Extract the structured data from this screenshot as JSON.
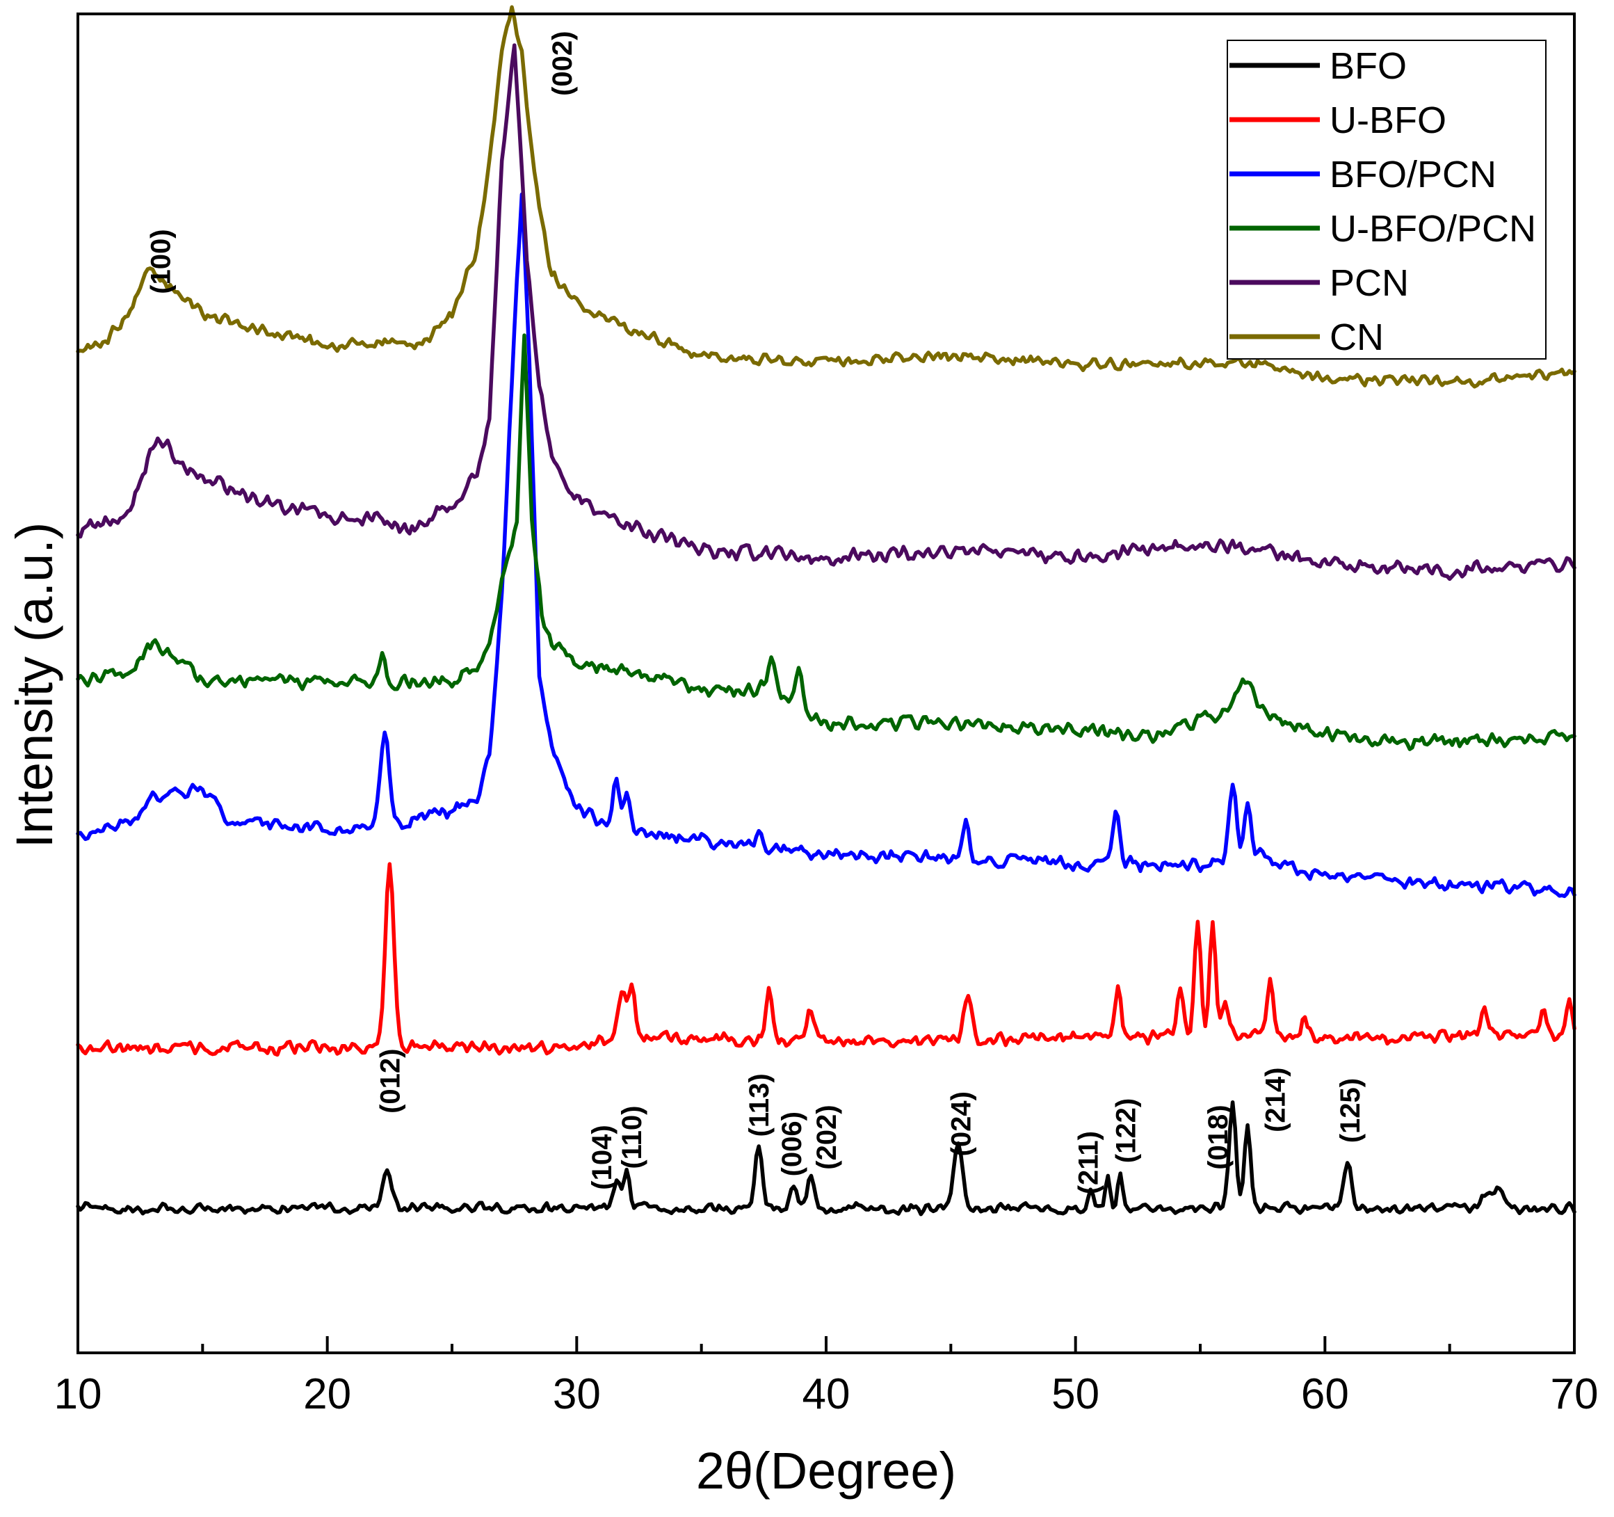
{
  "chart_data": {
    "type": "line",
    "title": "",
    "xlabel": "2θ(Degree)",
    "ylabel": "Intensity (a.u.)",
    "xlim": [
      10,
      70
    ],
    "ylim": [
      0,
      100
    ],
    "x_ticks": [
      10,
      20,
      30,
      40,
      50,
      60,
      70
    ],
    "x_tick_labels": [
      "10",
      "20",
      "30",
      "40",
      "50",
      "60",
      "70"
    ],
    "y_ticks_shown": false,
    "grid": false,
    "legend_position": "top-right",
    "legend": [
      "BFO",
      "U-BFO",
      "BFO/PCN",
      "U-BFO/PCN",
      "PCN",
      "CN"
    ],
    "series": [
      {
        "name": "BFO",
        "color": "#000000",
        "baseline": 10.8,
        "noise": 0.45,
        "envelope": [
          [
            10,
            0
          ],
          [
            70,
            0
          ]
        ],
        "peaks": [
          [
            22.4,
            3.2,
            0.18
          ],
          [
            31.6,
            2.0,
            0.12
          ],
          [
            32.0,
            3.0,
            0.12
          ],
          [
            37.3,
            4.6,
            0.14
          ],
          [
            38.7,
            1.8,
            0.14
          ],
          [
            39.4,
            2.5,
            0.14
          ],
          [
            45.3,
            4.6,
            0.18
          ],
          [
            50.6,
            1.4,
            0.12
          ],
          [
            51.3,
            2.6,
            0.1
          ],
          [
            51.8,
            2.6,
            0.1
          ],
          [
            56.3,
            7.7,
            0.14
          ],
          [
            56.9,
            6.3,
            0.12
          ],
          [
            60.9,
            3.5,
            0.16
          ],
          [
            66.5,
            1.0,
            0.2
          ],
          [
            67.0,
            1.4,
            0.2
          ]
        ]
      },
      {
        "name": "U-BFO",
        "color": "#ff0000",
        "baseline": 22.8,
        "noise": 0.55,
        "envelope": [
          [
            10,
            0
          ],
          [
            30,
            0
          ],
          [
            32,
            0.8
          ],
          [
            36,
            0.6
          ],
          [
            45,
            0.4
          ],
          [
            50,
            0.8
          ],
          [
            60,
            0.8
          ],
          [
            70,
            0.8
          ]
        ],
        "peaks": [
          [
            22.5,
            13.5,
            0.17
          ],
          [
            31.8,
            3.2,
            0.14
          ],
          [
            32.2,
            3.5,
            0.14
          ],
          [
            37.7,
            3.7,
            0.13
          ],
          [
            39.4,
            2.2,
            0.14
          ],
          [
            45.7,
            3.5,
            0.16
          ],
          [
            51.7,
            3.7,
            0.12
          ],
          [
            54.2,
            3.5,
            0.14
          ],
          [
            54.9,
            8.7,
            0.13
          ],
          [
            55.5,
            8.3,
            0.13
          ],
          [
            56.0,
            2.5,
            0.14
          ],
          [
            57.8,
            4.6,
            0.13
          ],
          [
            59.2,
            1.5,
            0.14
          ],
          [
            66.4,
            2.2,
            0.12
          ],
          [
            68.8,
            2.0,
            0.12
          ],
          [
            69.8,
            2.5,
            0.12
          ]
        ]
      },
      {
        "name": "BFO/PCN",
        "color": "#0000ff",
        "baseline": 38.5,
        "noise": 0.6,
        "envelope": [
          [
            10,
            0
          ],
          [
            12,
            1.0
          ],
          [
            13,
            3.2
          ],
          [
            15,
            3.5
          ],
          [
            16,
            1.5
          ],
          [
            18,
            0.8
          ],
          [
            20,
            0.6
          ],
          [
            22,
            0.8
          ],
          [
            25,
            2.0
          ],
          [
            26,
            3.0
          ],
          [
            26.5,
            6.0
          ],
          [
            27,
            18.0
          ],
          [
            27.5,
            38.0
          ],
          [
            27.8,
            48.0
          ],
          [
            28.1,
            36.0
          ],
          [
            28.5,
            12.0
          ],
          [
            29,
            7.0
          ],
          [
            30,
            2.0
          ],
          [
            32,
            0.6
          ],
          [
            35,
            -0.2
          ],
          [
            40,
            -1.2
          ],
          [
            45,
            -1.5
          ],
          [
            50,
            -2.0
          ],
          [
            55,
            -2.0
          ],
          [
            57,
            -1.0
          ],
          [
            60,
            -3.0
          ],
          [
            65,
            -3.5
          ],
          [
            70,
            -4.0
          ]
        ],
        "peaks": [
          [
            22.3,
            6.9,
            0.17
          ],
          [
            31.6,
            3.5,
            0.12
          ],
          [
            32.0,
            2.5,
            0.12
          ],
          [
            37.3,
            1.2,
            0.14
          ],
          [
            45.6,
            3.0,
            0.12
          ],
          [
            51.6,
            3.9,
            0.14
          ],
          [
            56.3,
            5.2,
            0.14
          ],
          [
            56.9,
            3.5,
            0.12
          ]
        ]
      },
      {
        "name": "U-BFO/PCN",
        "color": "#006400",
        "baseline": 50.0,
        "noise": 0.6,
        "envelope": [
          [
            10,
            0
          ],
          [
            12,
            1.0
          ],
          [
            13,
            3.0
          ],
          [
            14,
            2.0
          ],
          [
            15,
            0.2
          ],
          [
            20,
            0
          ],
          [
            25,
            0.2
          ],
          [
            26,
            1.0
          ],
          [
            26.5,
            3.0
          ],
          [
            27,
            7.5
          ],
          [
            27.3,
            9.5
          ],
          [
            27.6,
            12.0
          ],
          [
            27.9,
            26.0
          ],
          [
            28.2,
            12.0
          ],
          [
            28.6,
            5.0
          ],
          [
            29,
            3.0
          ],
          [
            30,
            1.5
          ],
          [
            33,
            0.6
          ],
          [
            35,
            -0.5
          ],
          [
            38,
            -0.5
          ],
          [
            40,
            -3.0
          ],
          [
            45,
            -3.0
          ],
          [
            50,
            -3.5
          ],
          [
            53,
            -4.0
          ],
          [
            57,
            -1.5
          ],
          [
            59,
            -3.5
          ],
          [
            63,
            -4.5
          ],
          [
            70,
            -4.0
          ]
        ],
        "peaks": [
          [
            22.2,
            2.5,
            0.12
          ],
          [
            37.8,
            2.7,
            0.16
          ],
          [
            38.9,
            2.3,
            0.16
          ],
          [
            56.8,
            1.5,
            0.3
          ]
        ]
      },
      {
        "name": "PCN",
        "color": "#4b0a5e",
        "baseline": 61.4,
        "noise": 0.65,
        "envelope": [
          [
            10,
            0
          ],
          [
            12,
            1.0
          ],
          [
            12.5,
            3.5
          ],
          [
            13.2,
            7.5
          ],
          [
            14,
            5.0
          ],
          [
            15,
            4.0
          ],
          [
            17,
            2.5
          ],
          [
            20,
            1.0
          ],
          [
            22,
            1.0
          ],
          [
            23.5,
            0
          ],
          [
            25,
            2.0
          ],
          [
            26,
            4.5
          ],
          [
            26.5,
            8.0
          ],
          [
            27,
            28.0
          ],
          [
            27.5,
            36.5
          ],
          [
            28,
            20.0
          ],
          [
            28.5,
            11.0
          ],
          [
            29,
            5.0
          ],
          [
            30,
            2.5
          ],
          [
            32,
            0.5
          ],
          [
            35,
            -1.5
          ],
          [
            40,
            -2.0
          ],
          [
            45,
            -1.5
          ],
          [
            50,
            -2.0
          ],
          [
            55,
            -1.0
          ],
          [
            57,
            -1.3
          ],
          [
            60,
            -2.5
          ],
          [
            65,
            -3.0
          ],
          [
            70,
            -2.5
          ]
        ],
        "peaks": []
      },
      {
        "name": "CN",
        "color": "#7a6a00",
        "baseline": 75.0,
        "noise": 0.5,
        "envelope": [
          [
            10,
            0
          ],
          [
            11,
            0.5
          ],
          [
            12,
            2.5
          ],
          [
            12.8,
            6.0
          ],
          [
            13.5,
            5.0
          ],
          [
            15,
            2.5
          ],
          [
            17,
            1.5
          ],
          [
            20,
            0.2
          ],
          [
            22,
            0.5
          ],
          [
            24,
            0.5
          ],
          [
            25,
            2.5
          ],
          [
            26,
            7.5
          ],
          [
            26.5,
            14.0
          ],
          [
            27,
            22.5
          ],
          [
            27.4,
            25.5
          ],
          [
            27.8,
            22.0
          ],
          [
            28.3,
            13.0
          ],
          [
            29,
            5.5
          ],
          [
            30,
            3.5
          ],
          [
            32,
            1.5
          ],
          [
            35,
            -0.5
          ],
          [
            40,
            -1.0
          ],
          [
            45,
            -0.5
          ],
          [
            50,
            -1.2
          ],
          [
            55,
            -1.0
          ],
          [
            57,
            -1.0
          ],
          [
            60,
            -2.3
          ],
          [
            65,
            -2.5
          ],
          [
            70,
            -1.8
          ]
        ],
        "peaks": []
      }
    ],
    "annotations": [
      {
        "text": "(012)",
        "x": 22.5,
        "y": 20.3
      },
      {
        "text": "(104)",
        "x": 31.0,
        "y": 14.6
      },
      {
        "text": "(110)",
        "x": 32.2,
        "y": 16.1
      },
      {
        "text": "(113)",
        "x": 37.3,
        "y": 18.5
      },
      {
        "text": "(006)",
        "x": 38.6,
        "y": 15.6
      },
      {
        "text": "(202)",
        "x": 40.0,
        "y": 16.1
      },
      {
        "text": "(024)",
        "x": 45.4,
        "y": 17.1
      },
      {
        "text": "(211)",
        "x": 50.5,
        "y": 14.2
      },
      {
        "text": "(122)",
        "x": 52.0,
        "y": 16.6
      },
      {
        "text": "(018)",
        "x": 55.7,
        "y": 16.1
      },
      {
        "text": "(214)",
        "x": 58.0,
        "y": 18.9
      },
      {
        "text": "(125)",
        "x": 61.0,
        "y": 18.1
      },
      {
        "text": "(100)",
        "x": 13.3,
        "y": 81.5
      },
      {
        "text": "(002)",
        "x": 29.4,
        "y": 96.3
      }
    ]
  }
}
